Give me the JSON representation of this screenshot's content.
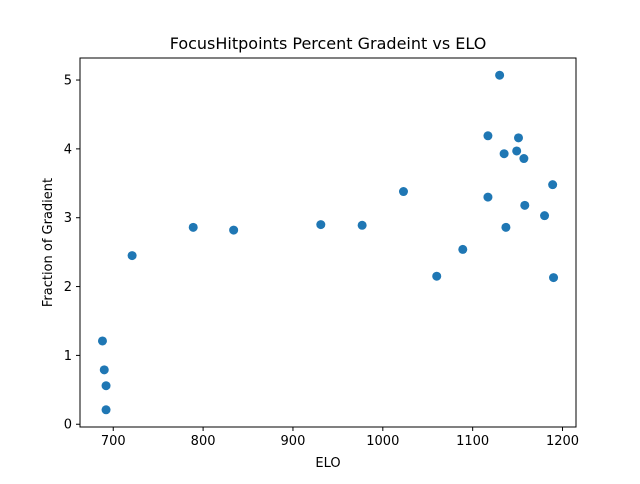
{
  "chart_data": {
    "type": "scatter",
    "title": "FocusHitpoints Percent Gradeint vs ELO",
    "xlabel": "ELO",
    "ylabel": "Fraction of Gradient",
    "xlim": [
      663,
      1215
    ],
    "ylim": [
      -0.04,
      5.32
    ],
    "xticks": [
      700,
      800,
      900,
      1000,
      1100,
      1200
    ],
    "yticks": [
      0,
      1,
      2,
      3,
      4,
      5
    ],
    "xtick_labels": [
      "700",
      "800",
      "900",
      "1000",
      "1100",
      "1200"
    ],
    "ytick_labels": [
      "0",
      "1",
      "2",
      "3",
      "4",
      "5"
    ],
    "grid": false,
    "marker_color": "#1f77b4",
    "points": [
      {
        "x": 688,
        "y": 1.21
      },
      {
        "x": 690,
        "y": 0.79
      },
      {
        "x": 692,
        "y": 0.56
      },
      {
        "x": 692,
        "y": 0.21
      },
      {
        "x": 721,
        "y": 2.45
      },
      {
        "x": 789,
        "y": 2.86
      },
      {
        "x": 834,
        "y": 2.82
      },
      {
        "x": 931,
        "y": 2.9
      },
      {
        "x": 977,
        "y": 2.89
      },
      {
        "x": 1023,
        "y": 3.38
      },
      {
        "x": 1060,
        "y": 2.15
      },
      {
        "x": 1089,
        "y": 2.54
      },
      {
        "x": 1117,
        "y": 4.19
      },
      {
        "x": 1117,
        "y": 3.3
      },
      {
        "x": 1130,
        "y": 5.07
      },
      {
        "x": 1135,
        "y": 3.93
      },
      {
        "x": 1137,
        "y": 2.86
      },
      {
        "x": 1149,
        "y": 3.97
      },
      {
        "x": 1151,
        "y": 4.16
      },
      {
        "x": 1157,
        "y": 3.86
      },
      {
        "x": 1158,
        "y": 3.18
      },
      {
        "x": 1180,
        "y": 3.03
      },
      {
        "x": 1189,
        "y": 3.48
      },
      {
        "x": 1190,
        "y": 2.13
      }
    ]
  }
}
